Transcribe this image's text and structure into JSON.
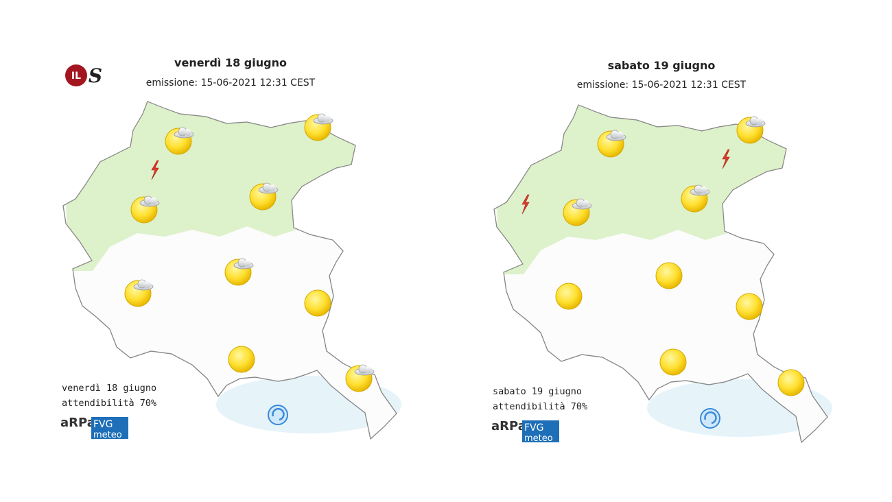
{
  "logo": {
    "badge": "IL",
    "glyph": "S"
  },
  "maps": [
    {
      "title": "venerdì 18 giugno",
      "issued": "emissione: 15-06-2021 12:31 CEST",
      "footer_date": "venerdì 18 giugno",
      "reliability": "attendibilità 70%",
      "brand": {
        "arpa": "aRPa",
        "fvg": "FVG",
        "meteo": "meteo"
      }
    },
    {
      "title": "sabato 19 giugno",
      "issued": "emissione: 15-06-2021 12:31 CEST",
      "footer_date": "sabato 19 giugno",
      "reliability": "attendibilità 70%",
      "brand": {
        "arpa": "aRPa",
        "fvg": "FVG",
        "meteo": "meteo"
      }
    }
  ]
}
